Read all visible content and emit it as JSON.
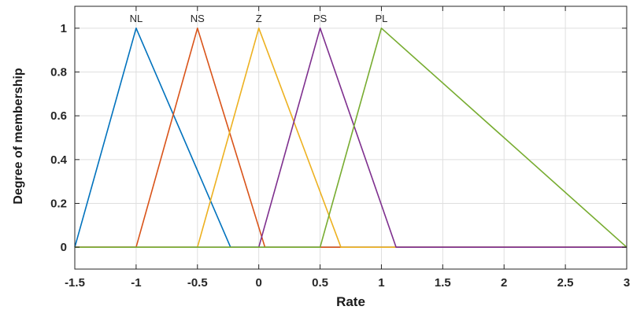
{
  "chart_data": {
    "type": "line",
    "title": "",
    "xlabel": "Rate",
    "ylabel": "Degree of membership",
    "xlim": [
      -1.5,
      3
    ],
    "ylim": [
      -0.1,
      1.1
    ],
    "xticks": [
      -1.5,
      -1,
      -0.5,
      0,
      0.5,
      1,
      1.5,
      2,
      2.5,
      3
    ],
    "xtick_labels": [
      "-1.5",
      "-1",
      "-0.5",
      "0",
      "0.5",
      "1",
      "1.5",
      "2",
      "2.5",
      "3"
    ],
    "yticks": [
      0,
      0.2,
      0.4,
      0.6,
      0.8,
      1
    ],
    "ytick_labels": [
      "0",
      "0.2",
      "0.4",
      "0.6",
      "0.8",
      "1"
    ],
    "grid": true,
    "series": [
      {
        "name": "NL",
        "color": "#0072BD",
        "x": [
          -1.5,
          -1.5,
          -1,
          -0.23,
          -0.23,
          3
        ],
        "y": [
          0,
          0,
          1,
          0,
          0,
          0
        ]
      },
      {
        "name": "NS",
        "color": "#D95319",
        "x": [
          -1.5,
          -1,
          -0.5,
          0.05,
          3
        ],
        "y": [
          0,
          0,
          1,
          0,
          0
        ]
      },
      {
        "name": "Z",
        "color": "#EDB120",
        "x": [
          -1.5,
          -0.5,
          0,
          0.67,
          3
        ],
        "y": [
          0,
          0,
          1,
          0,
          0
        ]
      },
      {
        "name": "PS",
        "color": "#7E2F8E",
        "x": [
          -1.5,
          0,
          0.5,
          1.12,
          3
        ],
        "y": [
          0,
          0,
          1,
          0,
          0
        ]
      },
      {
        "name": "PL",
        "color": "#77AC30",
        "x": [
          -1.5,
          0.5,
          1,
          3,
          3
        ],
        "y": [
          0,
          0,
          1,
          0,
          0
        ]
      }
    ],
    "mf_labels": [
      {
        "text": "NL",
        "x": -1
      },
      {
        "text": "NS",
        "x": -0.5
      },
      {
        "text": "Z",
        "x": 0
      },
      {
        "text": "PS",
        "x": 0.5
      },
      {
        "text": "PL",
        "x": 1
      }
    ]
  }
}
